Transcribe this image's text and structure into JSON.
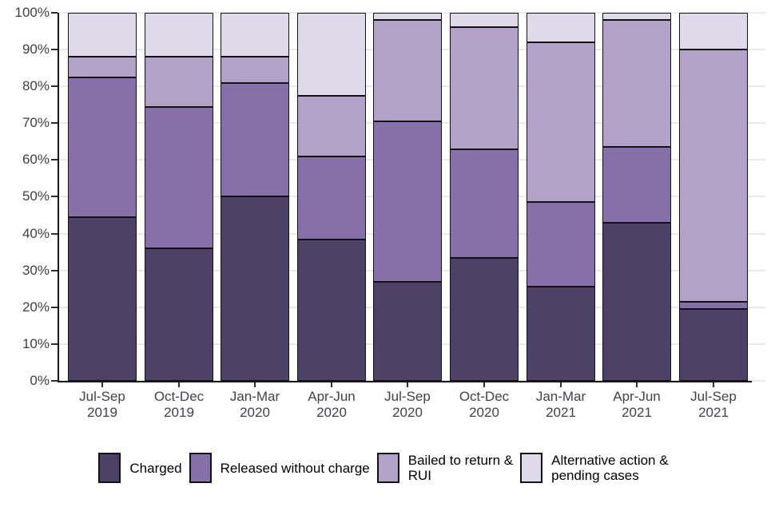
{
  "chart_data": {
    "type": "bar",
    "stacked": true,
    "percent_of_total": true,
    "grid": true,
    "legend_position": "bottom",
    "ylim": [
      0,
      100
    ],
    "yticks": [
      "0%",
      "10%",
      "20%",
      "30%",
      "40%",
      "50%",
      "60%",
      "70%",
      "80%",
      "90%",
      "100%"
    ],
    "categories": [
      "Jul-Sep\n2019",
      "Oct-Dec\n2019",
      "Jan-Mar\n2020",
      "Apr-Jun\n2020",
      "Jul-Sep\n2020",
      "Oct-Dec\n2020",
      "Jan-Mar\n2021",
      "Apr-Jun\n2021",
      "Jul-Sep\n2021"
    ],
    "series": [
      {
        "name": "Charged",
        "legend_label": "Charged",
        "color": "#4f4067",
        "values": [
          44.5,
          36,
          50,
          38.5,
          27,
          33.5,
          25.5,
          43,
          19.5
        ]
      },
      {
        "name": "Released without charge",
        "legend_label": "Released without charge",
        "color": "#8670a9",
        "values": [
          38,
          38.5,
          31,
          22.5,
          43.5,
          29.5,
          23,
          20.5,
          2
        ]
      },
      {
        "name": "Bailed to return & RUI",
        "legend_label": "Bailed to return &\nRUI",
        "color": "#b2a2c7",
        "values": [
          5.5,
          13.5,
          7,
          16.5,
          27.5,
          33,
          43.5,
          34.5,
          68.5
        ]
      },
      {
        "name": "Alternative action & pending cases",
        "legend_label": "Alternative action &\npending cases",
        "color": "#dfd9ea",
        "values": [
          12,
          12,
          12,
          22.5,
          2,
          4,
          8,
          2,
          10
        ]
      }
    ],
    "colors": {
      "background": "#ffffff",
      "gridline": "#e9e9e9",
      "axis": "#171717",
      "segment_border": "#121212",
      "tick_label": "#3f3f3f",
      "category_label": "#3e434b",
      "legend_text": "#000000"
    }
  }
}
